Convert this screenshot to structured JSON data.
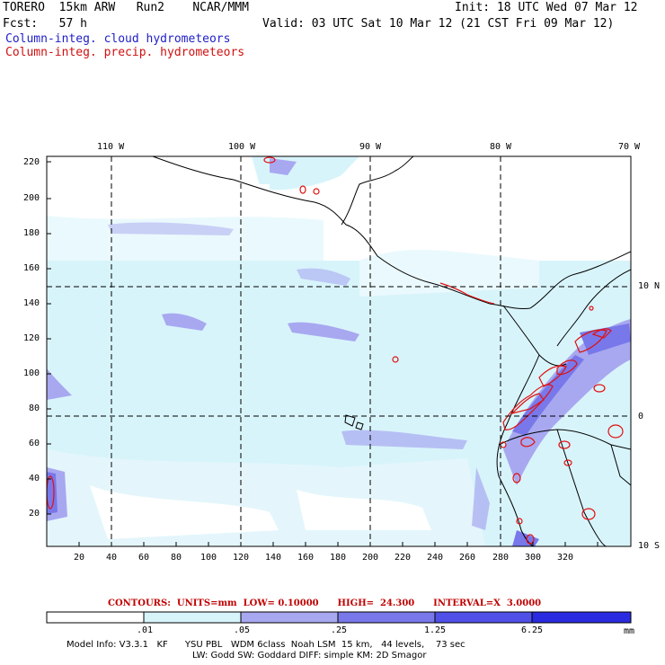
{
  "header": {
    "model": "TORERO  15km ARW   Run2    NCAR/MMM",
    "init": "Init: 18 UTC Wed 07 Mar 12",
    "fcst": "Fcst:   57 h",
    "valid": "Valid: 03 UTC Sat 10 Mar 12 (21 CST Fri 09 Mar 12)",
    "field_cloud": "Column-integ. cloud hydrometeors",
    "field_precip": "Column-integ. precip. hydrometeors"
  },
  "map": {
    "lon_labels": [
      "110 W",
      "100 W",
      "90 W",
      "80 W",
      "70 W"
    ],
    "lat_labels": [
      "10 N",
      "0",
      "10 S"
    ],
    "y_ticks": [
      "220",
      "200",
      "180",
      "160",
      "140",
      "120",
      "100",
      "80",
      "60",
      "40",
      "20"
    ],
    "x_ticks": [
      "20",
      "40",
      "60",
      "80",
      "100",
      "120",
      "140",
      "160",
      "180",
      "200",
      "220",
      "240",
      "260",
      "280",
      "300",
      "320"
    ]
  },
  "colorbar": {
    "contours_text": "CONTOURS:  UNITS=mm  LOW= 0.10000      HIGH=  24.300      INTERVAL=X  3.0000",
    "labels": [
      ".01",
      ".05",
      ".25",
      "1.25",
      "6.25"
    ],
    "units": "mm",
    "colors": [
      "#ffffff",
      "#d8f4fb",
      "#a8a8f0",
      "#7878ea",
      "#5050e8",
      "#2a2ae0",
      "#1414e0"
    ]
  },
  "footer": {
    "line1": "Model Info: V3.3.1   KF      YSU PBL   WDM 6class  Noah LSM  15 km,   44 levels,    73 sec",
    "line2": "LW: Godd SW: Goddard DIFF: simple KM: 2D Smagor"
  }
}
